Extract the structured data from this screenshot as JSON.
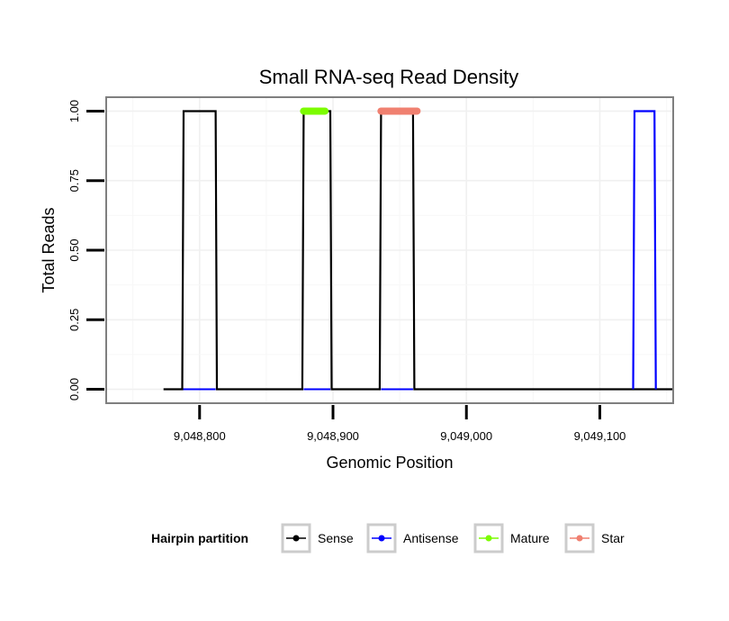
{
  "chart_data": {
    "type": "line",
    "title": "Small RNA-seq Read Density",
    "xlabel": "Genomic Position",
    "ylabel": "Total Reads",
    "xlim": [
      9048730,
      9049155
    ],
    "ylim": [
      -0.05,
      1.05
    ],
    "xticks": [
      9048800,
      9048900,
      9049000,
      9049100
    ],
    "xtick_labels": [
      "9,048,800",
      "9,048,900",
      "9,049,000",
      "9,049,100"
    ],
    "yticks": [
      0,
      0.25,
      0.5,
      0.75,
      1.0
    ],
    "ytick_labels": [
      "0.00",
      "0.25",
      "0.50",
      "0.75",
      "1.00"
    ],
    "grid": true,
    "legend": {
      "title": "Hairpin partition",
      "position": "bottom",
      "items": [
        {
          "label": "Sense",
          "color": "#000000"
        },
        {
          "label": "Antisense",
          "color": "#0000ff"
        },
        {
          "label": "Mature",
          "color": "#7cfc00"
        },
        {
          "label": "Star",
          "color": "#f08070"
        }
      ]
    },
    "series": [
      {
        "name": "Sense",
        "color": "#000000",
        "x": [
          9048773,
          9048787,
          9048788,
          9048812,
          9048813,
          9048877,
          9048878,
          9048898,
          9048899,
          9048935,
          9048936,
          9048960,
          9048961,
          9049155
        ],
        "y": [
          0,
          0,
          1,
          1,
          0,
          0,
          1,
          1,
          0,
          0,
          1,
          1,
          0,
          0
        ]
      },
      {
        "name": "Antisense",
        "color": "#0000ff",
        "x": [
          9048787,
          9048812,
          9048878,
          9048898,
          9048936,
          9048960,
          9049125,
          9049126,
          9049141,
          9049142
        ],
        "y": [
          0,
          0,
          null,
          0,
          0,
          null,
          0,
          1,
          1,
          0
        ],
        "segments": [
          [
            9048787,
            9048812
          ],
          [
            9048878,
            9048898
          ],
          [
            9048936,
            9048960
          ]
        ]
      },
      {
        "name": "Mature",
        "color": "#7cfc00",
        "x": [
          9048878,
          9048894
        ],
        "y": [
          1,
          1
        ]
      },
      {
        "name": "Star",
        "color": "#f08070",
        "x": [
          9048936,
          9048963
        ],
        "y": [
          1,
          1
        ]
      }
    ]
  }
}
